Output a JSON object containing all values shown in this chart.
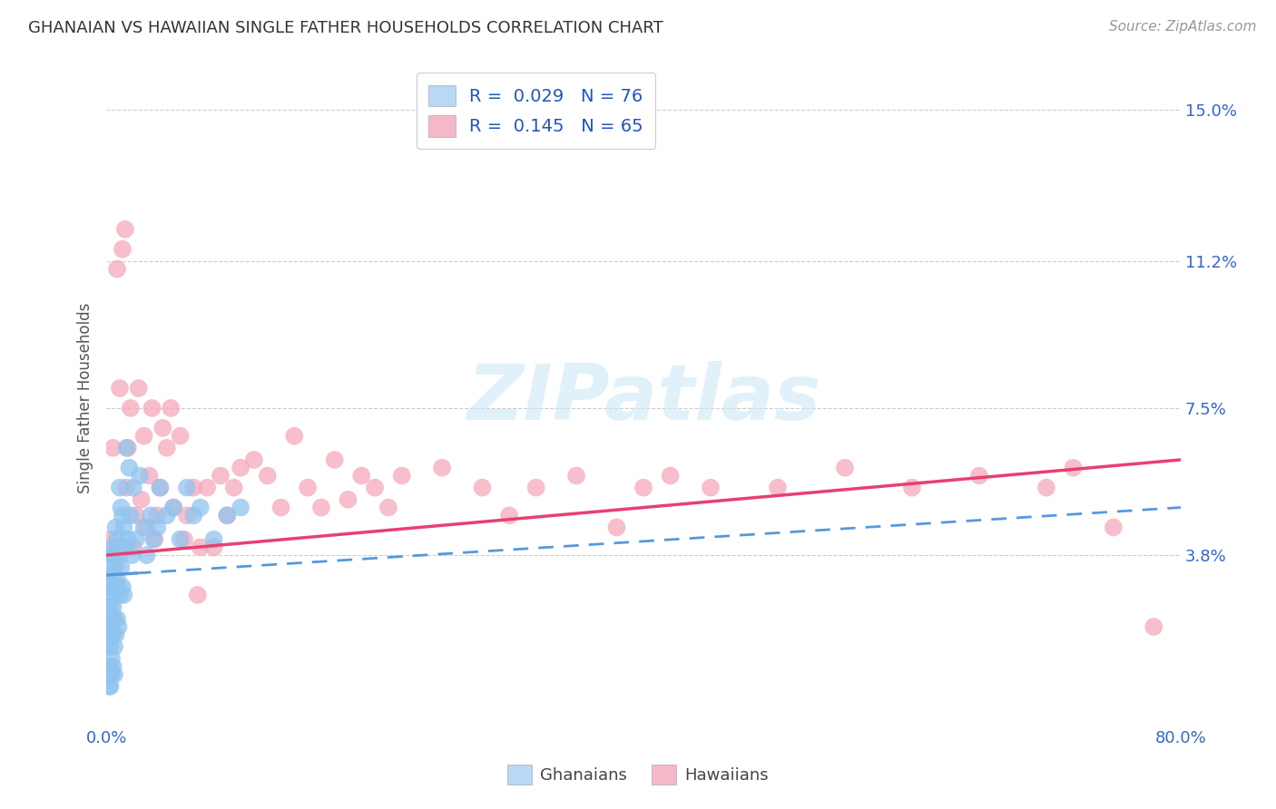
{
  "title": "GHANAIAN VS HAWAIIAN SINGLE FATHER HOUSEHOLDS CORRELATION CHART",
  "source": "Source: ZipAtlas.com",
  "ylabel": "Single Father Households",
  "xlim": [
    0.0,
    0.8
  ],
  "ylim": [
    -0.005,
    0.16
  ],
  "xticks": [
    0.0,
    0.1,
    0.2,
    0.3,
    0.4,
    0.5,
    0.6,
    0.7,
    0.8
  ],
  "xticklabels": [
    "0.0%",
    "",
    "",
    "",
    "",
    "",
    "",
    "",
    "80.0%"
  ],
  "ytick_positions": [
    0.038,
    0.075,
    0.112,
    0.15
  ],
  "yticklabels": [
    "3.8%",
    "7.5%",
    "11.2%",
    "15.0%"
  ],
  "ghanaian_color": "#90c4f0",
  "hawaiian_color": "#f5a8bc",
  "ghanaian_line_color": "#5599dd",
  "hawaiian_line_color": "#e84070",
  "legend_R_ghanaian": "0.029",
  "legend_N_ghanaian": "76",
  "legend_R_hawaiian": "0.145",
  "legend_N_hawaiian": "65",
  "background_color": "#ffffff",
  "grid_color": "#cccccc",
  "ghanaian_x": [
    0.001,
    0.001,
    0.001,
    0.002,
    0.002,
    0.002,
    0.002,
    0.002,
    0.002,
    0.002,
    0.003,
    0.003,
    0.003,
    0.003,
    0.003,
    0.003,
    0.003,
    0.004,
    0.004,
    0.004,
    0.004,
    0.004,
    0.004,
    0.005,
    0.005,
    0.005,
    0.005,
    0.005,
    0.006,
    0.006,
    0.006,
    0.006,
    0.006,
    0.007,
    0.007,
    0.007,
    0.007,
    0.008,
    0.008,
    0.008,
    0.009,
    0.009,
    0.009,
    0.01,
    0.01,
    0.01,
    0.011,
    0.011,
    0.012,
    0.012,
    0.013,
    0.013,
    0.014,
    0.015,
    0.016,
    0.017,
    0.018,
    0.019,
    0.02,
    0.022,
    0.025,
    0.028,
    0.03,
    0.033,
    0.035,
    0.038,
    0.04,
    0.045,
    0.05,
    0.055,
    0.06,
    0.065,
    0.07,
    0.08,
    0.09,
    0.1
  ],
  "ghanaian_y": [
    0.03,
    0.025,
    0.02,
    0.035,
    0.028,
    0.022,
    0.018,
    0.015,
    0.01,
    0.005,
    0.032,
    0.025,
    0.02,
    0.015,
    0.01,
    0.008,
    0.005,
    0.038,
    0.03,
    0.022,
    0.018,
    0.012,
    0.008,
    0.04,
    0.033,
    0.025,
    0.018,
    0.01,
    0.038,
    0.03,
    0.022,
    0.015,
    0.008,
    0.045,
    0.035,
    0.028,
    0.018,
    0.042,
    0.032,
    0.022,
    0.04,
    0.03,
    0.02,
    0.055,
    0.038,
    0.028,
    0.05,
    0.035,
    0.048,
    0.03,
    0.045,
    0.028,
    0.04,
    0.065,
    0.042,
    0.06,
    0.048,
    0.038,
    0.055,
    0.042,
    0.058,
    0.045,
    0.038,
    0.048,
    0.042,
    0.045,
    0.055,
    0.048,
    0.05,
    0.042,
    0.055,
    0.048,
    0.05,
    0.042,
    0.048,
    0.05
  ],
  "hawaiian_x": [
    0.003,
    0.005,
    0.008,
    0.01,
    0.012,
    0.014,
    0.015,
    0.016,
    0.018,
    0.02,
    0.022,
    0.024,
    0.026,
    0.028,
    0.03,
    0.032,
    0.034,
    0.036,
    0.038,
    0.04,
    0.042,
    0.045,
    0.048,
    0.05,
    0.055,
    0.058,
    0.06,
    0.065,
    0.068,
    0.07,
    0.075,
    0.08,
    0.085,
    0.09,
    0.095,
    0.1,
    0.11,
    0.12,
    0.13,
    0.14,
    0.15,
    0.16,
    0.17,
    0.18,
    0.19,
    0.2,
    0.21,
    0.22,
    0.25,
    0.28,
    0.3,
    0.32,
    0.35,
    0.38,
    0.4,
    0.42,
    0.45,
    0.5,
    0.55,
    0.6,
    0.65,
    0.7,
    0.72,
    0.75,
    0.78
  ],
  "hawaiian_y": [
    0.042,
    0.065,
    0.11,
    0.08,
    0.115,
    0.12,
    0.055,
    0.065,
    0.075,
    0.04,
    0.048,
    0.08,
    0.052,
    0.068,
    0.045,
    0.058,
    0.075,
    0.042,
    0.048,
    0.055,
    0.07,
    0.065,
    0.075,
    0.05,
    0.068,
    0.042,
    0.048,
    0.055,
    0.028,
    0.04,
    0.055,
    0.04,
    0.058,
    0.048,
    0.055,
    0.06,
    0.062,
    0.058,
    0.05,
    0.068,
    0.055,
    0.05,
    0.062,
    0.052,
    0.058,
    0.055,
    0.05,
    0.058,
    0.06,
    0.055,
    0.048,
    0.055,
    0.058,
    0.045,
    0.055,
    0.058,
    0.055,
    0.055,
    0.06,
    0.055,
    0.058,
    0.055,
    0.06,
    0.045,
    0.02
  ],
  "ghanaian_trend_x0": 0.0,
  "ghanaian_trend_y0": 0.033,
  "ghanaian_trend_x1": 0.8,
  "ghanaian_trend_y1": 0.05,
  "hawaiian_trend_x0": 0.0,
  "hawaiian_trend_y0": 0.038,
  "hawaiian_trend_x1": 0.8,
  "hawaiian_trend_y1": 0.062
}
